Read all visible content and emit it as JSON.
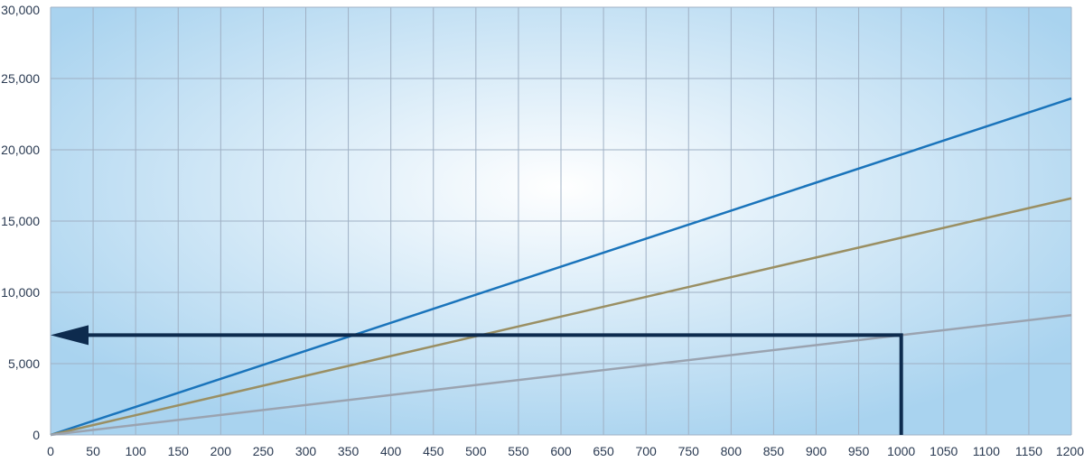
{
  "chart_data": {
    "type": "line",
    "title": "",
    "xlabel": "",
    "ylabel": "",
    "xlim": [
      0,
      1200
    ],
    "ylim": [
      0,
      30000
    ],
    "grid": true,
    "x_ticks": [
      0,
      50,
      100,
      150,
      200,
      250,
      300,
      350,
      400,
      450,
      500,
      550,
      600,
      650,
      700,
      750,
      800,
      850,
      900,
      950,
      1000,
      1050,
      1100,
      1150,
      1200
    ],
    "x_tick_labels": [
      "0",
      "50",
      "100",
      "150",
      "200",
      "250",
      "300",
      "350",
      "400",
      "450",
      "500",
      "550",
      "600",
      "650",
      "700",
      "750",
      "800",
      "850",
      "900",
      "950",
      "1000",
      "1050",
      "1100",
      "1150",
      "1200"
    ],
    "y_ticks": [
      0,
      5000,
      10000,
      15000,
      20000,
      25000,
      30000
    ],
    "y_tick_labels": [
      "0",
      "5,000",
      "10,000",
      "15,000",
      "20,000",
      "25,000",
      "30,000"
    ],
    "series": [
      {
        "x": [
          0,
          1200
        ],
        "values": [
          0,
          23600
        ],
        "color": "#1a74bb"
      },
      {
        "x": [
          0,
          1200
        ],
        "values": [
          0,
          16600
        ],
        "color": "#9a8f63"
      },
      {
        "x": [
          0,
          1200
        ],
        "values": [
          0,
          8400
        ],
        "color": "#9aa3b0"
      }
    ],
    "annotation": {
      "type": "lookup-arrow",
      "from_x": 1000,
      "to_y": 7000,
      "color": "#0d2b4e"
    },
    "colors": {
      "plot_edge": "#a9d3ef",
      "plot_center": "#ffffff",
      "grid": "#9fb0c4"
    }
  }
}
